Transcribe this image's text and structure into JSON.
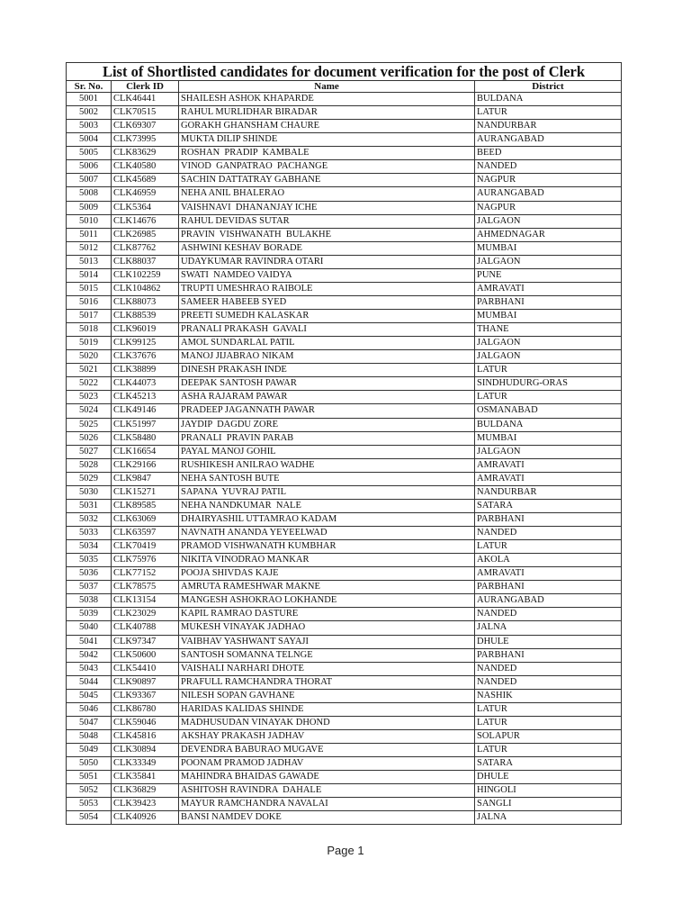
{
  "document": {
    "title": "List of Shortlisted candidates for document verification for the post of Clerk",
    "columns": [
      "Sr. No.",
      "Clerk ID",
      "Name",
      "District"
    ],
    "rows": [
      [
        "5001",
        "CLK46441",
        "SHAILESH ASHOK KHAPARDE",
        "BULDANA"
      ],
      [
        "5002",
        "CLK70515",
        "RAHUL MURLIDHAR BIRADAR",
        "LATUR"
      ],
      [
        "5003",
        "CLK69307",
        "GORAKH GHANSHAM CHAURE",
        "NANDURBAR"
      ],
      [
        "5004",
        "CLK73995",
        "MUKTA DILIP SHINDE",
        "AURANGABAD"
      ],
      [
        "5005",
        "CLK83629",
        "ROSHAN  PRADIP  KAMBALE",
        "BEED"
      ],
      [
        "5006",
        "CLK40580",
        "VINOD  GANPATRAO  PACHANGE",
        "NANDED"
      ],
      [
        "5007",
        "CLK45689",
        "SACHIN DATTATRAY GABHANE",
        "NAGPUR"
      ],
      [
        "5008",
        "CLK46959",
        "NEHA ANIL BHALERAO",
        "AURANGABAD"
      ],
      [
        "5009",
        "CLK5364",
        "VAISHNAVI  DHANANJAY ICHE",
        "NAGPUR"
      ],
      [
        "5010",
        "CLK14676",
        "RAHUL DEVIDAS SUTAR",
        "JALGAON"
      ],
      [
        "5011",
        "CLK26985",
        "PRAVIN  VISHWANATH  BULAKHE",
        "AHMEDNAGAR"
      ],
      [
        "5012",
        "CLK87762",
        "ASHWINI KESHAV BORADE",
        "MUMBAI"
      ],
      [
        "5013",
        "CLK88037",
        "UDAYKUMAR RAVINDRA OTARI",
        "JALGAON"
      ],
      [
        "5014",
        "CLK102259",
        "SWATI  NAMDEO VAIDYA",
        "PUNE"
      ],
      [
        "5015",
        "CLK104862",
        "TRUPTI UMESHRAO RAIBOLE",
        "AMRAVATI"
      ],
      [
        "5016",
        "CLK88073",
        "SAMEER HABEEB SYED",
        "PARBHANI"
      ],
      [
        "5017",
        "CLK88539",
        "PREETI SUMEDH KALASKAR",
        "MUMBAI"
      ],
      [
        "5018",
        "CLK96019",
        "PRANALI PRAKASH  GAVALI",
        "THANE"
      ],
      [
        "5019",
        "CLK99125",
        "AMOL SUNDARLAL PATIL",
        "JALGAON"
      ],
      [
        "5020",
        "CLK37676",
        "MANOJ JIJABRAO NIKAM",
        "JALGAON"
      ],
      [
        "5021",
        "CLK38899",
        "DINESH PRAKASH INDE",
        "LATUR"
      ],
      [
        "5022",
        "CLK44073",
        "DEEPAK SANTOSH PAWAR",
        "SINDHUDURG-ORAS"
      ],
      [
        "5023",
        "CLK45213",
        "ASHA RAJARAM PAWAR",
        "LATUR"
      ],
      [
        "5024",
        "CLK49146",
        "PRADEEP JAGANNATH PAWAR",
        "OSMANABAD"
      ],
      [
        "5025",
        "CLK51997",
        "JAYDIP  DAGDU ZORE",
        "BULDANA"
      ],
      [
        "5026",
        "CLK58480",
        "PRANALI  PRAVIN PARAB",
        "MUMBAI"
      ],
      [
        "5027",
        "CLK16654",
        "PAYAL MANOJ GOHIL",
        "JALGAON"
      ],
      [
        "5028",
        "CLK29166",
        "RUSHIKESH ANILRAO WADHE",
        "AMRAVATI"
      ],
      [
        "5029",
        "CLK9847",
        "NEHA SANTOSH BUTE",
        "AMRAVATI"
      ],
      [
        "5030",
        "CLK15271",
        "SAPANA  YUVRAJ PATIL",
        "NANDURBAR"
      ],
      [
        "5031",
        "CLK89585",
        "NEHA NANDKUMAR  NALE",
        "SATARA"
      ],
      [
        "5032",
        "CLK63069",
        "DHAIRYASHIL UTTAMRAO KADAM",
        "PARBHANI"
      ],
      [
        "5033",
        "CLK63597",
        "NAVNATH ANANDA YEYEELWAD",
        "NANDED"
      ],
      [
        "5034",
        "CLK70419",
        "PRAMOD VISHWANATH KUMBHAR",
        "LATUR"
      ],
      [
        "5035",
        "CLK75976",
        "NIKITA VINODRAO MANKAR",
        "AKOLA"
      ],
      [
        "5036",
        "CLK77152",
        "POOJA SHIVDAS KAJE",
        "AMRAVATI"
      ],
      [
        "5037",
        "CLK78575",
        "AMRUTA RAMESHWAR MAKNE",
        "PARBHANI"
      ],
      [
        "5038",
        "CLK13154",
        "MANGESH ASHOKRAO LOKHANDE",
        "AURANGABAD"
      ],
      [
        "5039",
        "CLK23029",
        "KAPIL RAMRAO DASTURE",
        "NANDED"
      ],
      [
        "5040",
        "CLK40788",
        "MUKESH VINAYAK JADHAO",
        "JALNA"
      ],
      [
        "5041",
        "CLK97347",
        "VAIBHAV YASHWANT SAYAJI",
        "DHULE"
      ],
      [
        "5042",
        "CLK50600",
        "SANTOSH SOMANNA TELNGE",
        "PARBHANI"
      ],
      [
        "5043",
        "CLK54410",
        "VAISHALI NARHARI DHOTE",
        "NANDED"
      ],
      [
        "5044",
        "CLK90897",
        "PRAFULL RAMCHANDRA THORAT",
        "NANDED"
      ],
      [
        "5045",
        "CLK93367",
        "NILESH SOPAN GAVHANE",
        "NASHIK"
      ],
      [
        "5046",
        "CLK86780",
        "HARIDAS KALIDAS SHINDE",
        "LATUR"
      ],
      [
        "5047",
        "CLK59046",
        "MADHUSUDAN VINAYAK DHOND",
        "LATUR"
      ],
      [
        "5048",
        "CLK45816",
        "AKSHAY PRAKASH JADHAV",
        "SOLAPUR"
      ],
      [
        "5049",
        "CLK30894",
        "DEVENDRA BABURAO MUGAVE",
        "LATUR"
      ],
      [
        "5050",
        "CLK33349",
        "POONAM PRAMOD JADHAV",
        "SATARA"
      ],
      [
        "5051",
        "CLK35841",
        "MAHINDRA BHAIDAS GAWADE",
        "DHULE"
      ],
      [
        "5052",
        "CLK36829",
        "ASHITOSH RAVINDRA  DAHALE",
        "HINGOLI"
      ],
      [
        "5053",
        "CLK39423",
        "MAYUR RAMCHANDRA NAVALAI",
        "SANGLI"
      ],
      [
        "5054",
        "CLK40926",
        "BANSI NAMDEV DOKE",
        "JALNA"
      ]
    ],
    "footer": "Page 1"
  }
}
